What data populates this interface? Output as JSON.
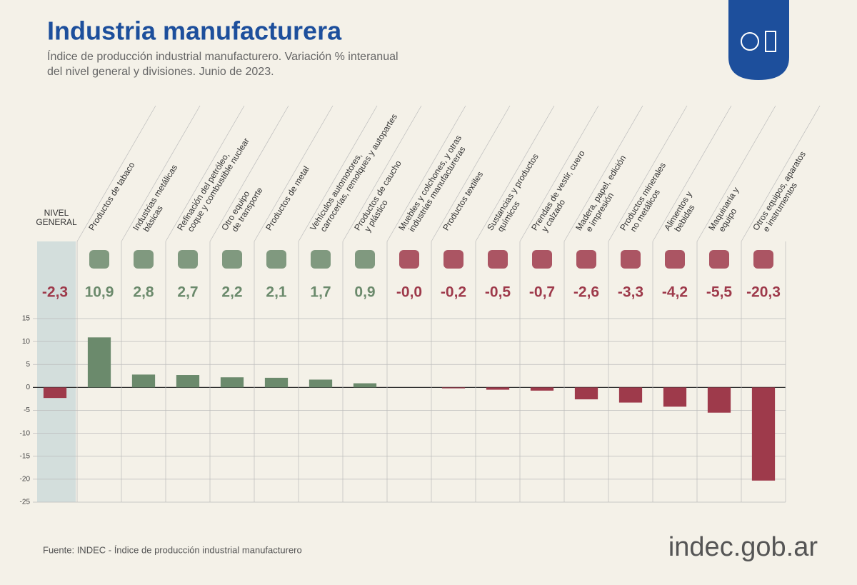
{
  "chart_data": {
    "type": "bar",
    "title": "Industria manufacturera",
    "subtitle": [
      "Índice de producción industrial manufacturero. Variación % interanual",
      "del nivel general y divisiones. Junio de 2023."
    ],
    "categories": [
      [
        "NIVEL",
        "GENERAL"
      ],
      [
        "Productos de tabaco"
      ],
      [
        "Industrias metálicas",
        "básicas"
      ],
      [
        "Refinación del petróleo,",
        "coque y combustible nuclear"
      ],
      [
        "Otro equipo",
        "de transporte"
      ],
      [
        "Productos de metal"
      ],
      [
        "Vehículos automotores,",
        "carrocerías, remolques y autopartes"
      ],
      [
        "Productos de caucho",
        "y plástico"
      ],
      [
        "Muebles y colchones, y otras",
        "industrias manufactureras"
      ],
      [
        "Productos textiles"
      ],
      [
        "Sustancias y productos",
        "químicos"
      ],
      [
        "Prendas de vestir, cuero",
        "y calzado"
      ],
      [
        "Madera, papel, edición",
        "e impresión"
      ],
      [
        "Productos minerales",
        "no metálicos"
      ],
      [
        "Alimentos y",
        "bebidas"
      ],
      [
        "Maquinaria y",
        "equipo"
      ],
      [
        "Otros equipos, aparatos",
        "e instrumentos"
      ]
    ],
    "values": [
      -2.3,
      10.9,
      2.8,
      2.7,
      2.2,
      2.1,
      1.7,
      0.9,
      -0.0,
      -0.2,
      -0.5,
      -0.7,
      -2.6,
      -3.3,
      -4.2,
      -5.5,
      -20.3
    ],
    "value_labels": [
      "-2,3",
      "10,9",
      "2,8",
      "2,7",
      "2,2",
      "2,1",
      "1,7",
      "0,9",
      "-0,0",
      "-0,2",
      "-0,5",
      "-0,7",
      "-2,6",
      "-3,3",
      "-4,2",
      "-5,5",
      "-20,3"
    ],
    "positive_color": "#6b8a6c",
    "negative_color": "#9e3a4b",
    "ylim": [
      -25,
      15
    ],
    "yticks": [
      -25,
      -20,
      -15,
      -10,
      -5,
      0,
      5,
      10,
      15
    ],
    "grid": true,
    "source": "Fuente: INDEC - Índice de producción industrial manufacturero",
    "logo": "indec.gob.ar"
  }
}
